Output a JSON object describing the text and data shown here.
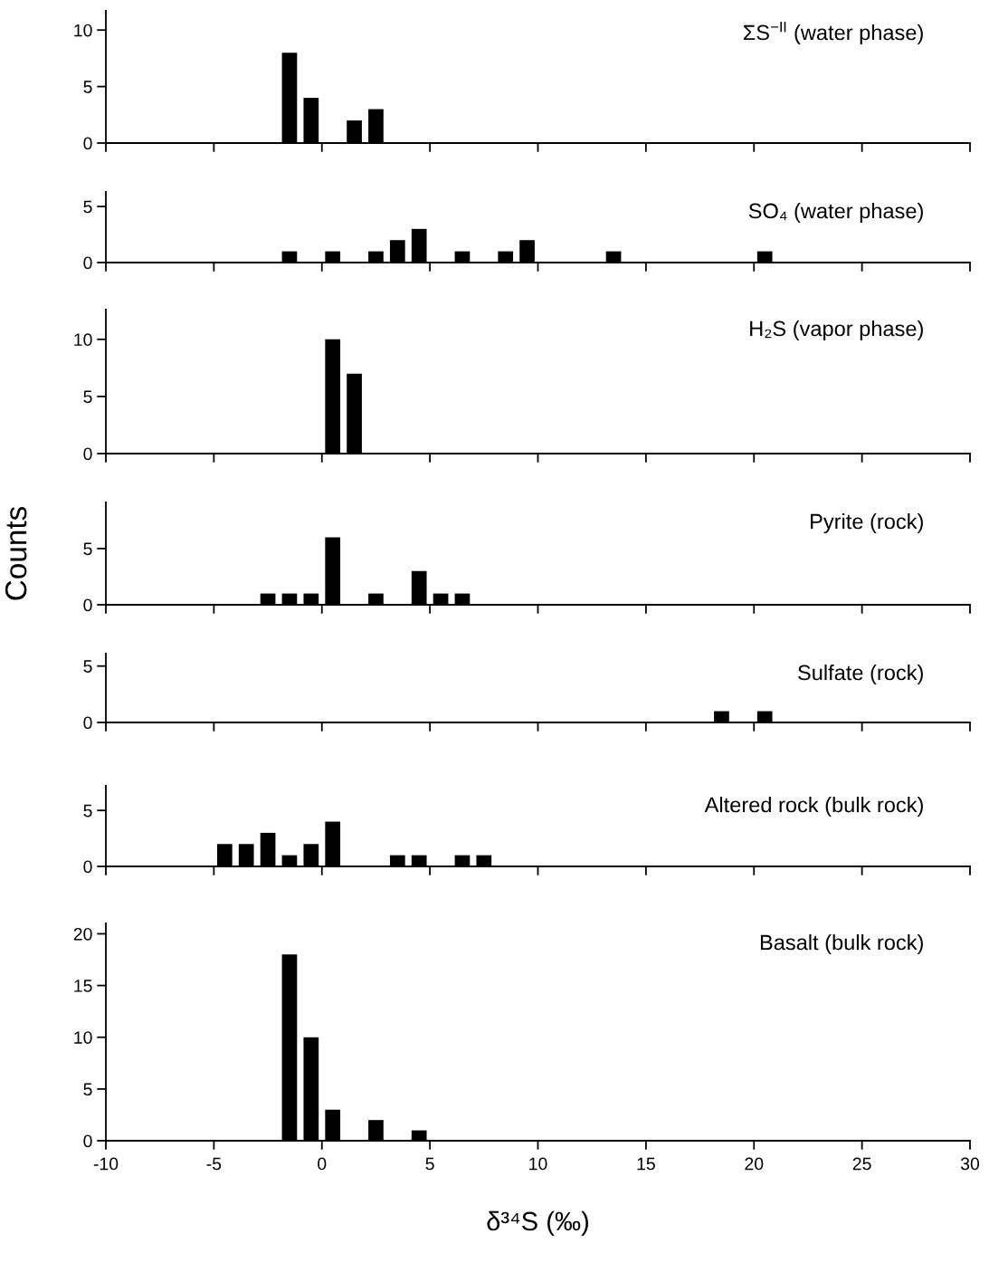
{
  "chart_data": [
    {
      "type": "histogram",
      "title": "ΣS$^{−II}$ (water phase)",
      "bins": [
        -2,
        -1,
        0,
        1,
        2,
        3
      ],
      "values": [
        8,
        4,
        0,
        2,
        3
      ],
      "color": "#000000",
      "xlim": [
        -10,
        30
      ],
      "xticks": [
        -10,
        -5,
        0,
        5,
        10,
        15,
        20,
        25,
        30
      ],
      "ylim": [
        0,
        11.7
      ],
      "yticks": [
        0,
        5,
        10
      ],
      "tick_labels": "y"
    },
    {
      "type": "histogram",
      "title": "SO₄ (water phase)",
      "bins": [
        -2,
        -1,
        0,
        1,
        2,
        3,
        4,
        5,
        6,
        7,
        8,
        9,
        10,
        11,
        12,
        13,
        14,
        15,
        16,
        17,
        18,
        19,
        20,
        21
      ],
      "values": [
        1,
        0,
        1,
        0,
        1,
        2,
        3,
        0,
        1,
        0,
        1,
        2,
        0,
        0,
        0,
        1,
        0,
        0,
        0,
        0,
        0,
        0,
        1
      ],
      "color": "#000000",
      "xlim": [
        -10,
        30
      ],
      "xticks": [
        -10,
        -5,
        0,
        5,
        10,
        15,
        20,
        25,
        30
      ],
      "ylim": [
        0,
        6.3
      ],
      "yticks": [
        0,
        5
      ],
      "tick_labels": "y"
    },
    {
      "type": "histogram",
      "title": "H₂S (vapor phase)",
      "bins": [
        0,
        1,
        2
      ],
      "values": [
        10,
        7
      ],
      "color": "#000000",
      "xlim": [
        -10,
        30
      ],
      "xticks": [
        -10,
        -5,
        0,
        5,
        10,
        15,
        20,
        25,
        30
      ],
      "ylim": [
        0,
        12.6
      ],
      "yticks": [
        0,
        5,
        10
      ],
      "tick_labels": "y"
    },
    {
      "type": "histogram",
      "title": "Pyrite (rock)",
      "ylabel": "Counts",
      "bins": [
        -3,
        -2,
        -1,
        0,
        1,
        2,
        3,
        4,
        5,
        6,
        7
      ],
      "values": [
        1,
        1,
        1,
        6,
        0,
        1,
        0,
        3,
        1,
        1
      ],
      "color": "#000000",
      "xlim": [
        -10,
        30
      ],
      "xticks": [
        -10,
        -5,
        0,
        5,
        10,
        15,
        20,
        25,
        30
      ],
      "ylim": [
        0,
        9.1
      ],
      "yticks": [
        0,
        5
      ],
      "tick_labels": "y"
    },
    {
      "type": "histogram",
      "title": "Sulfate (rock)",
      "bins": [
        18,
        19,
        20,
        21
      ],
      "values": [
        1,
        0,
        1
      ],
      "color": "#000000",
      "xlim": [
        -10,
        30
      ],
      "xticks": [
        -10,
        -5,
        0,
        5,
        10,
        15,
        20,
        25,
        30
      ],
      "ylim": [
        0,
        6.1
      ],
      "yticks": [
        0,
        5
      ],
      "tick_labels": "y"
    },
    {
      "type": "histogram",
      "title": "Altered rock (bulk rock)",
      "bins": [
        -5,
        -4,
        -3,
        -2,
        -1,
        0,
        1,
        2,
        3,
        4,
        5,
        6,
        7,
        8
      ],
      "values": [
        2,
        2,
        3,
        1,
        2,
        4,
        0,
        0,
        1,
        1,
        0,
        1,
        1
      ],
      "color": "#000000",
      "xlim": [
        -10,
        30
      ],
      "xticks": [
        -10,
        -5,
        0,
        5,
        10,
        15,
        20,
        25,
        30
      ],
      "ylim": [
        0,
        7.2
      ],
      "yticks": [
        0,
        5
      ],
      "tick_labels": "y"
    },
    {
      "type": "histogram",
      "title": "Basalt (bulk rock)",
      "xlabel": "δ³⁴S (‰)",
      "bins": [
        -2,
        -1,
        0,
        1,
        2,
        3,
        4,
        5
      ],
      "values": [
        18,
        10,
        3,
        0,
        2,
        0,
        1
      ],
      "color": "#000000",
      "xlim": [
        -10,
        30
      ],
      "xticks": [
        -10,
        -5,
        0,
        5,
        10,
        15,
        20,
        25,
        30
      ],
      "ylim": [
        0,
        21
      ],
      "yticks": [
        0,
        5,
        10,
        15,
        20
      ]
    }
  ]
}
